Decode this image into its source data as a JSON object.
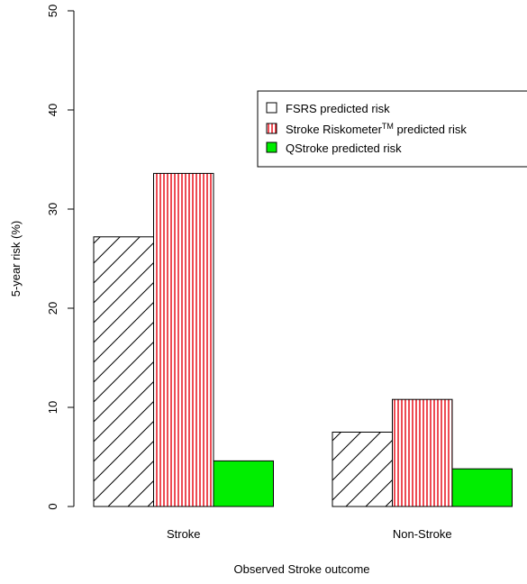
{
  "chart_data": {
    "type": "bar",
    "categories": [
      "Stroke",
      "Non-Stroke"
    ],
    "series": [
      {
        "name": "FSRS predicted risk",
        "values": [
          27.2,
          7.5
        ],
        "fill": "hatch-diagonal",
        "color": "#000000"
      },
      {
        "name": "Stroke Riskometer",
        "name_superscript": "TM",
        "name_suffix": " predicted risk",
        "values": [
          33.6,
          10.8
        ],
        "fill": "hatch-vertical",
        "color": "#e8000b"
      },
      {
        "name": "QStroke predicted risk",
        "values": [
          4.6,
          3.8
        ],
        "fill": "solid",
        "color": "#00ee00"
      }
    ],
    "xlabel": "Observed Stroke outcome",
    "ylabel": "5-year risk (%)",
    "ylim": [
      0,
      50
    ],
    "yticks": [
      0,
      10,
      20,
      30,
      40,
      50
    ],
    "legend_position": "top-right",
    "grid": false
  }
}
